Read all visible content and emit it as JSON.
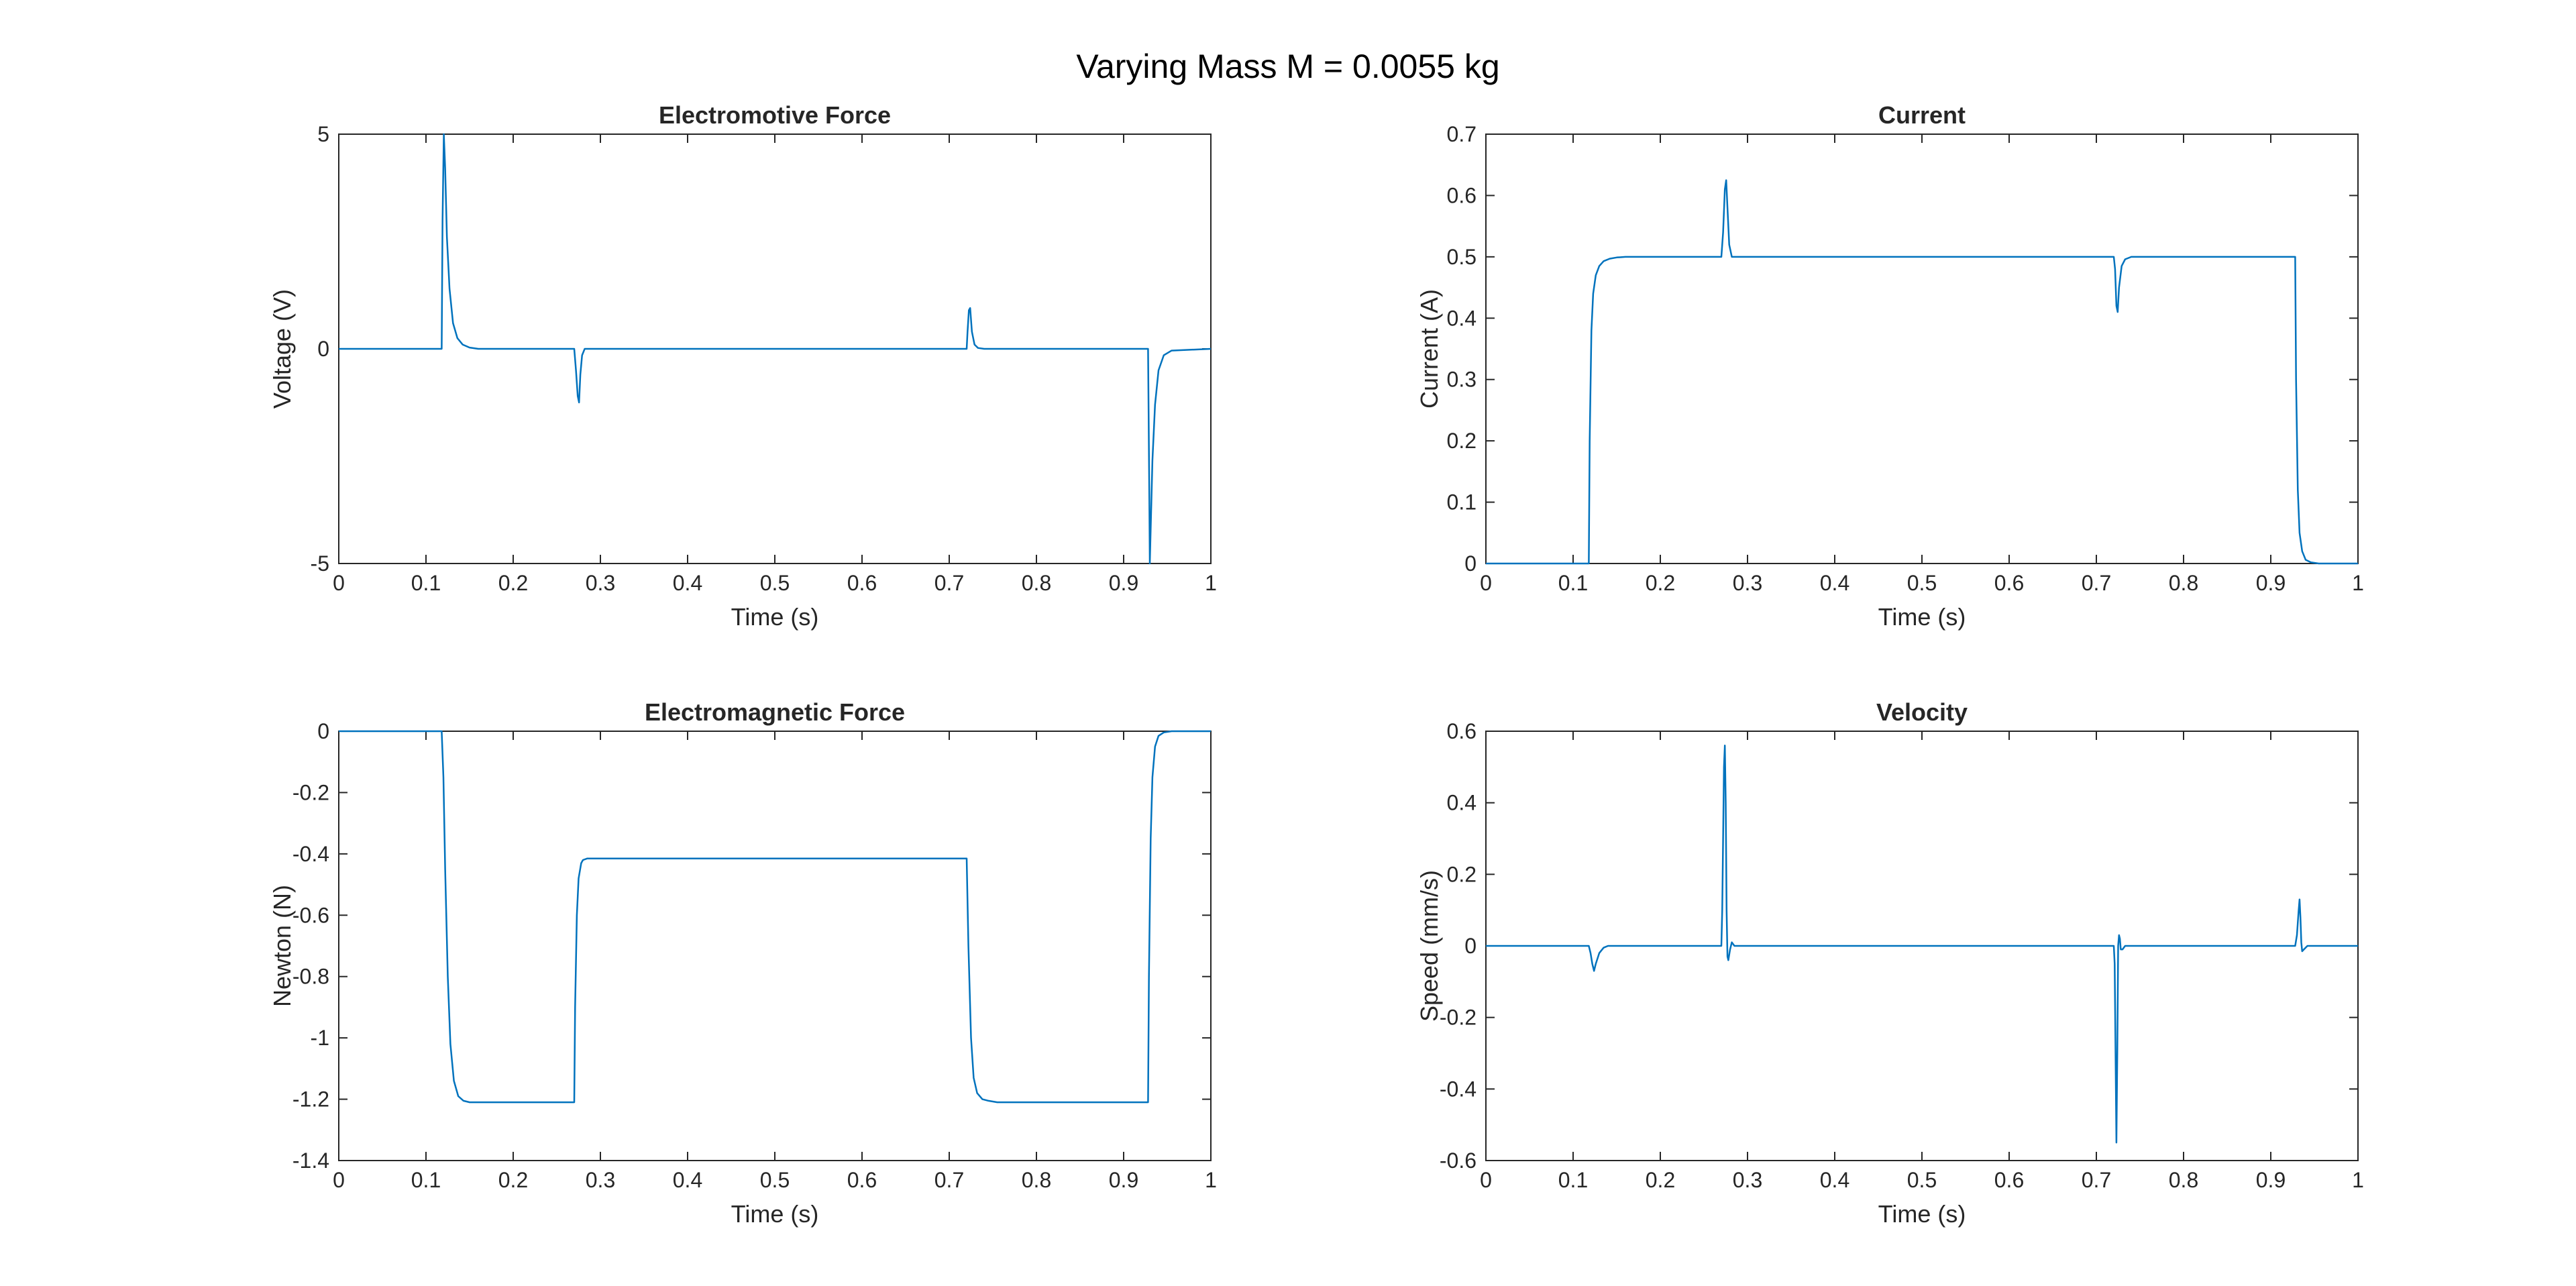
{
  "figure": {
    "title": "Varying Mass M = 0.0055 kg",
    "line_color": "#0072BD"
  },
  "chart_data": [
    {
      "type": "line",
      "title": "Electromotive Force",
      "xlabel": "Time (s)",
      "ylabel": "Voltage (V)",
      "xlim": [
        0,
        1
      ],
      "ylim": [
        -5,
        5
      ],
      "xticks": [
        0,
        0.1,
        0.2,
        0.3,
        0.4,
        0.5,
        0.6,
        0.7,
        0.8,
        0.9,
        1
      ],
      "xtick_labels": [
        "0",
        "0.1",
        "0.2",
        "0.3",
        "0.4",
        "0.5",
        "0.6",
        "0.7",
        "0.8",
        "0.9",
        "1"
      ],
      "yticks": [
        -5,
        0,
        5
      ],
      "ytick_labels": [
        "-5",
        "0",
        "5"
      ],
      "grid": false,
      "series": [
        {
          "x": [
            0,
            0.118,
            0.119,
            0.1205,
            0.122,
            0.124,
            0.127,
            0.131,
            0.136,
            0.142,
            0.15,
            0.16,
            0.27,
            0.272,
            0.274,
            0.2755,
            0.277,
            0.279,
            0.282,
            0.72,
            0.721,
            0.7225,
            0.724,
            0.726,
            0.729,
            0.733,
            0.74,
            0.928,
            0.9295,
            0.93,
            0.931,
            0.933,
            0.936,
            0.94,
            0.946,
            0.955,
            1
          ],
          "y": [
            0,
            0,
            3,
            5,
            4.2,
            2.6,
            1.4,
            0.6,
            0.25,
            0.1,
            0.03,
            0,
            0,
            -0.5,
            -1.1,
            -1.25,
            -0.6,
            -0.15,
            0,
            0,
            0.4,
            0.9,
            0.95,
            0.4,
            0.1,
            0.02,
            0,
            0,
            -3.5,
            -5,
            -4.2,
            -2.6,
            -1.3,
            -0.5,
            -0.15,
            -0.04,
            0
          ]
        }
      ]
    },
    {
      "type": "line",
      "title": "Current",
      "xlabel": "Time (s)",
      "ylabel": "Current (A)",
      "xlim": [
        0,
        1
      ],
      "ylim": [
        0,
        0.7
      ],
      "xticks": [
        0,
        0.1,
        0.2,
        0.3,
        0.4,
        0.5,
        0.6,
        0.7,
        0.8,
        0.9,
        1
      ],
      "xtick_labels": [
        "0",
        "0.1",
        "0.2",
        "0.3",
        "0.4",
        "0.5",
        "0.6",
        "0.7",
        "0.8",
        "0.9",
        "1"
      ],
      "yticks": [
        0,
        0.1,
        0.2,
        0.3,
        0.4,
        0.5,
        0.6,
        0.7
      ],
      "ytick_labels": [
        "0",
        "0.1",
        "0.2",
        "0.3",
        "0.4",
        "0.5",
        "0.6",
        "0.7"
      ],
      "grid": false,
      "series": [
        {
          "x": [
            0,
            0.118,
            0.119,
            0.121,
            0.123,
            0.126,
            0.13,
            0.135,
            0.142,
            0.15,
            0.16,
            0.27,
            0.272,
            0.274,
            0.2755,
            0.277,
            0.279,
            0.282,
            0.285,
            0.72,
            0.7215,
            0.723,
            0.7245,
            0.726,
            0.729,
            0.733,
            0.74,
            0.928,
            0.929,
            0.931,
            0.933,
            0.936,
            0.94,
            0.946,
            0.955,
            1
          ],
          "y": [
            0,
            0,
            0.2,
            0.38,
            0.44,
            0.47,
            0.485,
            0.493,
            0.497,
            0.499,
            0.5,
            0.5,
            0.54,
            0.61,
            0.625,
            0.58,
            0.52,
            0.5,
            0.5,
            0.5,
            0.48,
            0.42,
            0.41,
            0.45,
            0.485,
            0.496,
            0.5,
            0.5,
            0.3,
            0.12,
            0.05,
            0.02,
            0.006,
            0.002,
            0,
            0
          ]
        }
      ]
    },
    {
      "type": "line",
      "title": "Electromagnetic Force",
      "xlabel": "Time (s)",
      "ylabel": "Newton (N)",
      "xlim": [
        0,
        1
      ],
      "ylim": [
        -1.4,
        0
      ],
      "xticks": [
        0,
        0.1,
        0.2,
        0.3,
        0.4,
        0.5,
        0.6,
        0.7,
        0.8,
        0.9,
        1
      ],
      "xtick_labels": [
        "0",
        "0.1",
        "0.2",
        "0.3",
        "0.4",
        "0.5",
        "0.6",
        "0.7",
        "0.8",
        "0.9",
        "1"
      ],
      "yticks": [
        -1.4,
        -1.2,
        -1,
        -0.8,
        -0.6,
        -0.4,
        -0.2,
        0
      ],
      "ytick_labels": [
        "-1.4",
        "-1.2",
        "-1",
        "-0.8",
        "-0.6",
        "-0.4",
        "-0.2",
        "0"
      ],
      "grid": false,
      "series": [
        {
          "x": [
            0,
            0.118,
            0.12,
            0.122,
            0.125,
            0.128,
            0.132,
            0.137,
            0.143,
            0.15,
            0.16,
            0.27,
            0.271,
            0.273,
            0.275,
            0.278,
            0.28,
            0.285,
            0.72,
            0.722,
            0.725,
            0.728,
            0.732,
            0.738,
            0.745,
            0.755,
            0.928,
            0.929,
            0.931,
            0.933,
            0.936,
            0.94,
            0.946,
            0.955,
            1
          ],
          "y": [
            0,
            0,
            -0.15,
            -0.45,
            -0.8,
            -1.02,
            -1.14,
            -1.19,
            -1.205,
            -1.21,
            -1.21,
            -1.21,
            -0.9,
            -0.6,
            -0.48,
            -0.43,
            -0.42,
            -0.415,
            -0.415,
            -0.7,
            -1.0,
            -1.13,
            -1.18,
            -1.2,
            -1.205,
            -1.21,
            -1.21,
            -0.8,
            -0.35,
            -0.15,
            -0.05,
            -0.015,
            -0.004,
            0,
            0
          ]
        }
      ]
    },
    {
      "type": "line",
      "title": "Velocity",
      "xlabel": "Time (s)",
      "ylabel": "Speed (mm/s)",
      "xlim": [
        0,
        1
      ],
      "ylim": [
        -0.6,
        0.6
      ],
      "xticks": [
        0,
        0.1,
        0.2,
        0.3,
        0.4,
        0.5,
        0.6,
        0.7,
        0.8,
        0.9,
        1
      ],
      "xtick_labels": [
        "0",
        "0.1",
        "0.2",
        "0.3",
        "0.4",
        "0.5",
        "0.6",
        "0.7",
        "0.8",
        "0.9",
        "1"
      ],
      "yticks": [
        -0.6,
        -0.4,
        -0.2,
        0,
        0.2,
        0.4,
        0.6
      ],
      "ytick_labels": [
        "-0.6",
        "-0.4",
        "-0.2",
        "0",
        "0.2",
        "0.4",
        "0.6"
      ],
      "grid": false,
      "series": [
        {
          "x": [
            0,
            0.118,
            0.12,
            0.122,
            0.124,
            0.126,
            0.13,
            0.135,
            0.14,
            0.27,
            0.271,
            0.272,
            0.273,
            0.274,
            0.275,
            0.276,
            0.277,
            0.278,
            0.28,
            0.282,
            0.285,
            0.29,
            0.72,
            0.721,
            0.722,
            0.723,
            0.724,
            0.725,
            0.726,
            0.727,
            0.728,
            0.73,
            0.733,
            0.74,
            0.928,
            0.93,
            0.932,
            0.933,
            0.934,
            0.935,
            0.936,
            0.938,
            0.942,
            1
          ],
          "y": [
            0,
            0,
            -0.02,
            -0.05,
            -0.07,
            -0.05,
            -0.02,
            -0.005,
            0,
            0,
            0.1,
            0.3,
            0.5,
            0.56,
            0.4,
            0.1,
            -0.03,
            -0.04,
            -0.01,
            0.01,
            0,
            0,
            0,
            -0.05,
            -0.3,
            -0.55,
            -0.3,
            0,
            0.03,
            0.02,
            -0.01,
            -0.01,
            0,
            0,
            0,
            0.03,
            0.1,
            0.13,
            0.08,
            0.01,
            -0.015,
            -0.01,
            0,
            0
          ]
        }
      ]
    }
  ]
}
